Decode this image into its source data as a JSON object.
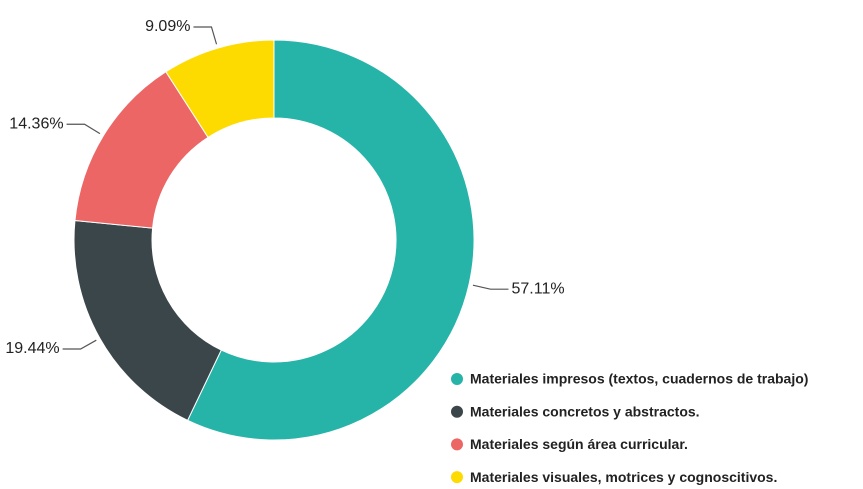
{
  "chart_data": {
    "type": "donut",
    "categories": [
      "Materiales impresos (textos, cuadernos de trabajo)",
      "Materiales concretos y abstractos.",
      "Materiales según área curricular.",
      "Materiales visuales, motrices y cognoscitivos."
    ],
    "values": [
      57.11,
      19.44,
      14.36,
      9.09
    ],
    "value_labels": [
      "57.11%",
      "19.44%",
      "14.36%",
      "9.09%"
    ],
    "colors": [
      "#26b3a8",
      "#3a4649",
      "#ec6666",
      "#fddb00"
    ],
    "legend": "bottom-right"
  }
}
